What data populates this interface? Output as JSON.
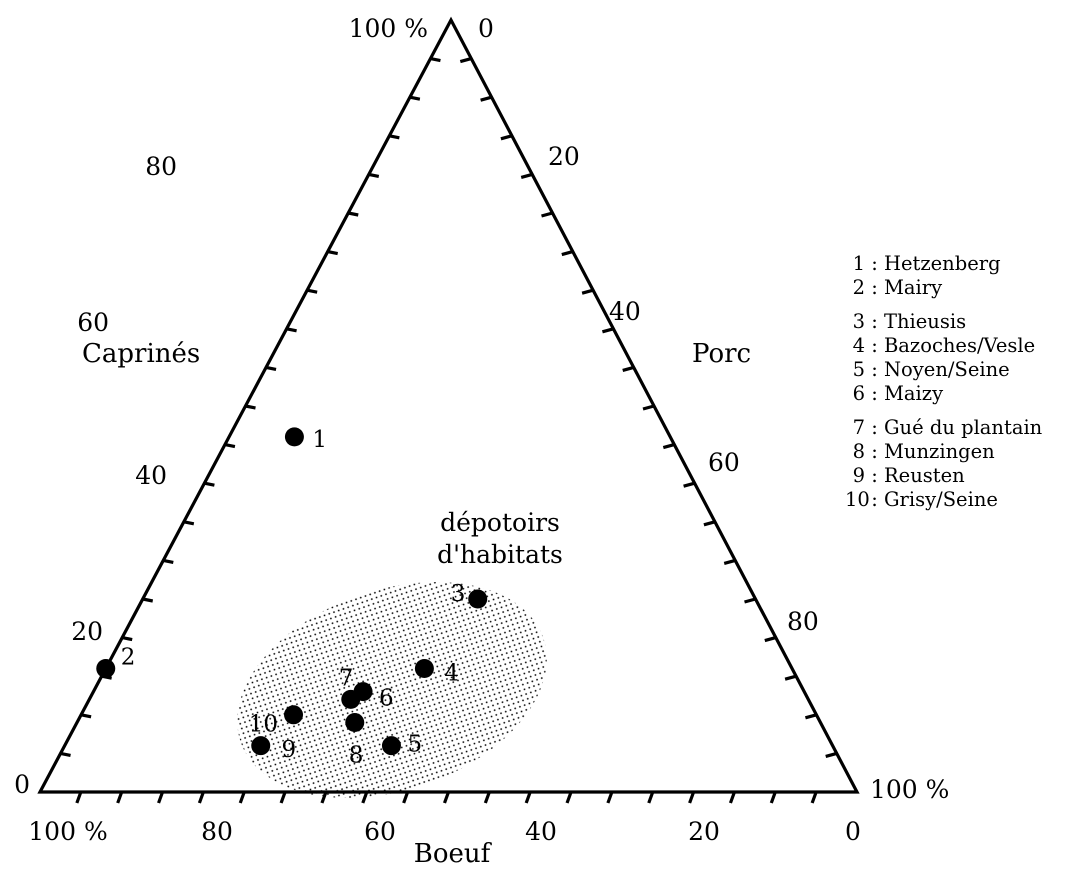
{
  "chart_data": {
    "type": "scatter",
    "subtype": "ternary",
    "axes": {
      "bottom": {
        "label": "Boeuf",
        "ticks": [
          "100 %",
          "80",
          "60",
          "40",
          "20",
          "0"
        ]
      },
      "left": {
        "label": "Caprinés",
        "ticks": [
          "0",
          "20",
          "40",
          "60",
          "80",
          "100 %"
        ]
      },
      "right": {
        "label": "Porc",
        "ticks": [
          "0",
          "20",
          "40",
          "60",
          "80",
          "100 %"
        ]
      }
    },
    "grid": false,
    "points": [
      {
        "label": "1",
        "boeuf": 46,
        "caprines": 46,
        "porc": 8
      },
      {
        "label": "2",
        "boeuf": 84,
        "caprines": 16,
        "porc": 0
      },
      {
        "label": "3",
        "boeuf": 34,
        "caprines": 25,
        "porc": 41
      },
      {
        "label": "4",
        "boeuf": 45,
        "caprines": 16,
        "porc": 39
      },
      {
        "label": "5",
        "boeuf": 54,
        "caprines": 6,
        "porc": 40
      },
      {
        "label": "6",
        "boeuf": 54,
        "caprines": 13,
        "porc": 33
      },
      {
        "label": "7",
        "boeuf": 56,
        "caprines": 12,
        "porc": 32
      },
      {
        "label": "8",
        "boeuf": 57,
        "caprines": 9,
        "porc": 34
      },
      {
        "label": "9",
        "boeuf": 64,
        "caprines": 10,
        "porc": 26
      },
      {
        "label": "10",
        "boeuf": 70,
        "caprines": 6,
        "porc": 24
      }
    ],
    "zone": {
      "label_line1": "dépotoirs",
      "label_line2": "d'habitats"
    }
  },
  "legend": [
    [
      {
        "num": "1",
        "name": "Hetzenberg"
      },
      {
        "num": "2",
        "name": "Mairy"
      }
    ],
    [
      {
        "num": "3",
        "name": "Thieusis"
      },
      {
        "num": "4",
        "name": "Bazoches/Vesle"
      },
      {
        "num": "5",
        "name": "Noyen/Seine"
      },
      {
        "num": "6",
        "name": "Maizy"
      }
    ],
    [
      {
        "num": "7",
        "name": "Gué du plantain"
      },
      {
        "num": "8",
        "name": "Munzingen"
      },
      {
        "num": "9",
        "name": "Reusten"
      },
      {
        "num": "10",
        "name": "Grisy/Seine"
      }
    ]
  ]
}
